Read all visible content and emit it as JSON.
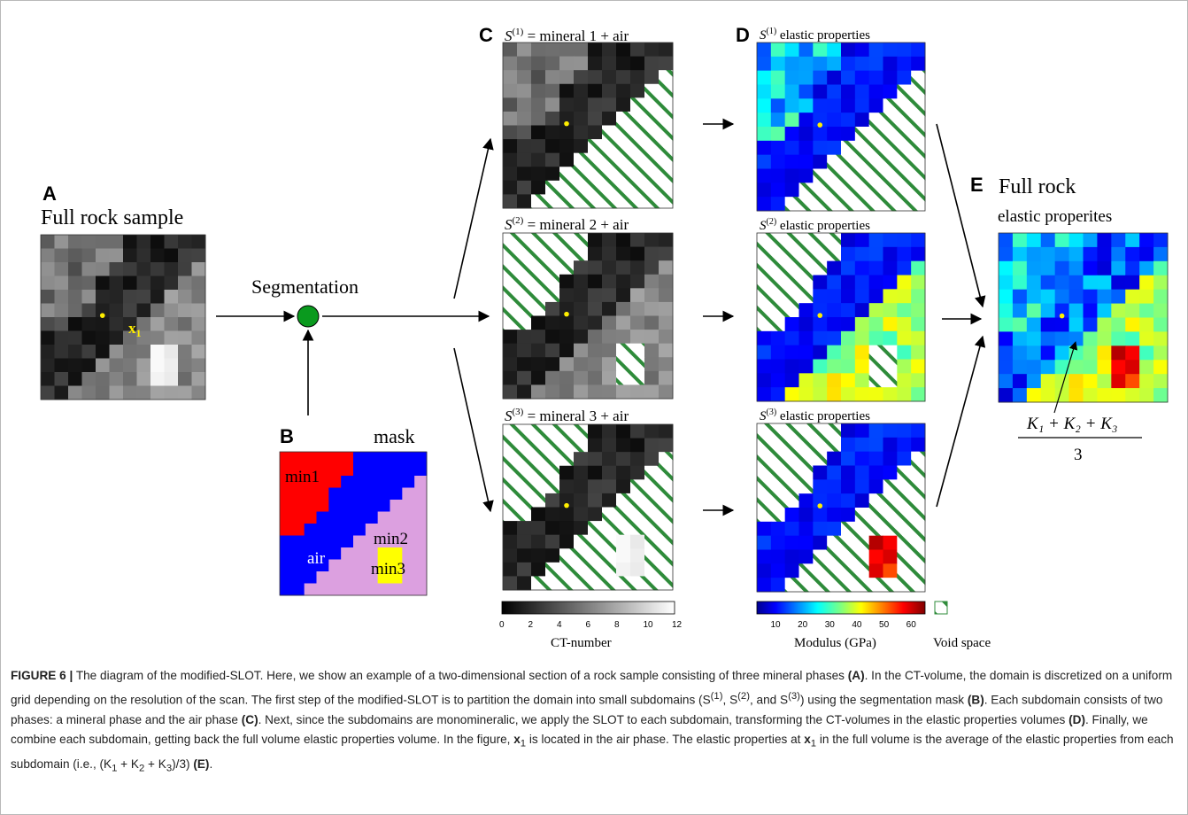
{
  "figure": {
    "panel_labels": {
      "a": "A",
      "b": "B",
      "c": "C",
      "d": "D",
      "e": "E"
    },
    "panel_a": {
      "title": "Full rock sample",
      "point_label": "x",
      "point_sub": "1"
    },
    "segmentation_label": "Segmentation",
    "mask": {
      "title": "mask",
      "regions": [
        "min1",
        "air",
        "min2",
        "min3"
      ],
      "colors": {
        "min1": "#ff0000",
        "air": "#0000ff",
        "min2": "#dca0e0",
        "min3": "#ffff00"
      }
    },
    "subdomain_titles": [
      {
        "s": "S",
        "sup": "(1)",
        "rest": " = mineral 1  + air"
      },
      {
        "s": "S",
        "sup": "(2)",
        "rest": " = mineral 2  + air"
      },
      {
        "s": "S",
        "sup": "(3)",
        "rest": " = mineral 3  + air"
      }
    ],
    "elastic_titles": [
      {
        "s": "S",
        "sup": "(1)",
        "rest": " elastic properties"
      },
      {
        "s": "S",
        "sup": "(2)",
        "rest": " elastic properties"
      },
      {
        "s": "S",
        "sup": "(3)",
        "rest": " elastic properties"
      }
    ],
    "panel_e": {
      "title": "Full rock",
      "subtitle": "elastic properites",
      "formula_numerator": "K₁ + K₂ + K₃",
      "formula_denominator": "3"
    },
    "ct_colorbar": {
      "ticks": [
        "0",
        "2",
        "4",
        "6",
        "8",
        "10",
        "12"
      ],
      "label": "CT-number"
    },
    "modulus_colorbar": {
      "ticks": [
        "10",
        "20",
        "30",
        "40",
        "50",
        "60"
      ],
      "label": "Modulus (GPa)"
    },
    "void_label": "Void space",
    "colors": {
      "hatch": "#2e8b3a",
      "point": "#ffee00",
      "segmentation_node": "#0a9a1e"
    }
  },
  "caption": {
    "label": "FIGURE 6 |",
    "s1": "The diagram of the modified-SLOT. Here, we show an example of a two-dimensional section of a rock sample consisting of three mineral phases ",
    "ref_a": "(A)",
    "s2": ". In the CT-volume, the domain is discretized on a uniform grid depending on the resolution of the scan. The first step of the modified-SLOT is to partition the domain into small subdomains (S",
    "sup1": "(1)",
    "s3": ", S",
    "sup2": "(2)",
    "s4": ",   and S",
    "sup3": "(3)",
    "s5": ") using the segmentation mask ",
    "ref_b": "(B)",
    "s6": ". Each subdomain consists of two phases: a mineral phase and the air phase ",
    "ref_c": "(C)",
    "s7": ". Next, since the subdomains are monomineralic, we apply the SLOT to each subdomain, transforming the CT-volumes in the elastic properties volumes ",
    "ref_d": "(D)",
    "s8": ". Finally, we combine each subdomain, getting back the full volume elastic properties volume. In the figure, ",
    "x1": "x",
    "x1sub": "1",
    "s9": " is located in the air phase. The elastic properties at ",
    "x2": "x",
    "x2sub": "1",
    "s10": " in the full volume is the average of the elastic properties from each subdomain (i.e.,  (K",
    "k1": "1",
    "s11": " + K",
    "k2": "2",
    "s12": " + K",
    "k3": "3",
    "s13": ")/3) ",
    "ref_e": "(E)",
    "s14": "."
  }
}
